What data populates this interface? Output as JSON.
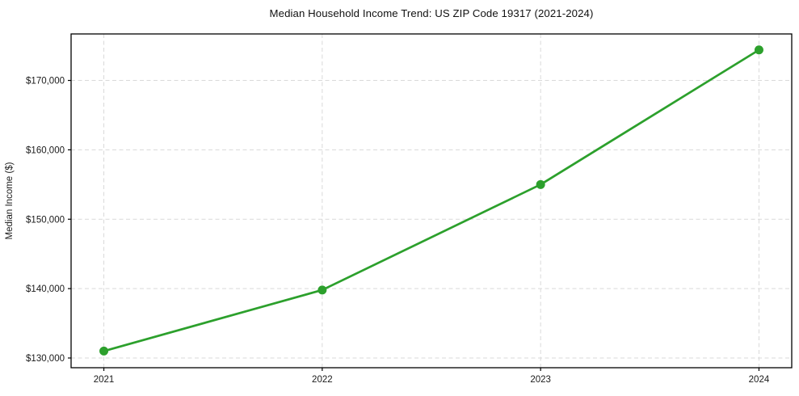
{
  "chart_data": {
    "type": "line",
    "title": "Median Household Income Trend: US ZIP Code 19317 (2021-2024)",
    "xlabel": "",
    "ylabel": "Median Income ($)",
    "x": [
      2021,
      2022,
      2023,
      2024
    ],
    "x_tick_labels": [
      "2021",
      "2022",
      "2023",
      "2024"
    ],
    "series": [
      {
        "name": "Median Household Income",
        "values": [
          131000,
          139800,
          155000,
          174400
        ]
      }
    ],
    "y_ticks": [
      130000,
      140000,
      150000,
      160000,
      170000
    ],
    "y_tick_labels": [
      "$130,000",
      "$140,000",
      "$150,000",
      "$160,000",
      "$170,000"
    ],
    "xlim": [
      2020.85,
      2024.15
    ],
    "ylim": [
      128600,
      176700
    ],
    "grid": true,
    "grid_style": "dashed",
    "legend_position": "none",
    "line_color": "#2ca02c",
    "marker": "circle",
    "marker_radius": 5.5
  },
  "style": {
    "background_color": "#ffffff",
    "grid_color": "#d9d9d9",
    "spine_color": "#000000",
    "text_color": "#1a1a1a"
  }
}
